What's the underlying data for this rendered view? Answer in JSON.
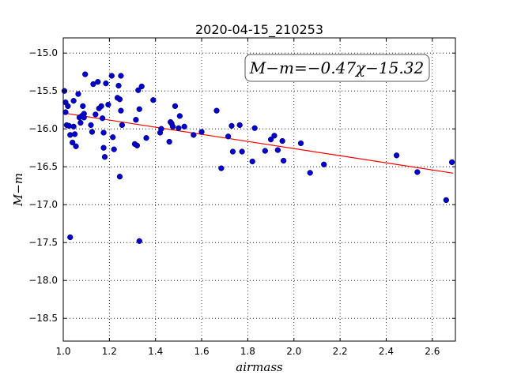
{
  "chart_data": {
    "type": "scatter",
    "title": "2020-04-15_210253",
    "xlabel": "airmass",
    "ylabel": "M−m",
    "xlim": [
      1.0,
      2.7
    ],
    "ylim": [
      -18.8,
      -14.8
    ],
    "x_ticks": [
      "1.0",
      "1.2",
      "1.4",
      "1.6",
      "1.8",
      "2.0",
      "2.2",
      "2.4",
      "2.6"
    ],
    "y_ticks": [
      "−15.0",
      "−15.5",
      "−16.0",
      "−16.5",
      "−17.0",
      "−17.5",
      "−18.0",
      "−18.5"
    ],
    "x_tick_values": [
      1.0,
      1.2,
      1.4,
      1.6,
      1.8,
      2.0,
      2.2,
      2.4,
      2.6
    ],
    "y_tick_values": [
      -15.0,
      -15.5,
      -16.0,
      -16.5,
      -17.0,
      -17.5,
      -18.0,
      -18.5
    ],
    "grid": true,
    "annotation": "M−m=−0.47χ−15.32",
    "fit": {
      "slope": -0.47,
      "intercept": -15.32,
      "x_range": [
        1.0,
        2.69
      ],
      "color": "#ff0000"
    },
    "marker_color": "#0000cc",
    "points": [
      [
        1.005,
        -15.5
      ],
      [
        1.01,
        -15.65
      ],
      [
        1.01,
        -15.78
      ],
      [
        1.015,
        -15.95
      ],
      [
        1.02,
        -15.7
      ],
      [
        1.025,
        -15.96
      ],
      [
        1.03,
        -16.08
      ],
      [
        1.03,
        -17.43
      ],
      [
        1.04,
        -16.18
      ],
      [
        1.045,
        -15.97
      ],
      [
        1.045,
        -15.63
      ],
      [
        1.05,
        -16.07
      ],
      [
        1.055,
        -16.23
      ],
      [
        1.065,
        -15.54
      ],
      [
        1.07,
        -15.85
      ],
      [
        1.075,
        -15.92
      ],
      [
        1.08,
        -15.83
      ],
      [
        1.085,
        -15.7
      ],
      [
        1.09,
        -15.8
      ],
      [
        1.09,
        -15.85
      ],
      [
        1.095,
        -15.28
      ],
      [
        1.12,
        -15.95
      ],
      [
        1.125,
        -16.04
      ],
      [
        1.13,
        -15.41
      ],
      [
        1.14,
        -15.81
      ],
      [
        1.15,
        -15.38
      ],
      [
        1.155,
        -15.73
      ],
      [
        1.165,
        -15.7
      ],
      [
        1.17,
        -15.86
      ],
      [
        1.175,
        -16.05
      ],
      [
        1.175,
        -16.25
      ],
      [
        1.18,
        -16.37
      ],
      [
        1.185,
        -15.4
      ],
      [
        1.195,
        -15.68
      ],
      [
        1.21,
        -15.3
      ],
      [
        1.215,
        -16.11
      ],
      [
        1.22,
        -16.27
      ],
      [
        1.235,
        -15.59
      ],
      [
        1.24,
        -15.43
      ],
      [
        1.245,
        -15.61
      ],
      [
        1.245,
        -16.63
      ],
      [
        1.25,
        -15.3
      ],
      [
        1.25,
        -15.76
      ],
      [
        1.255,
        -15.95
      ],
      [
        1.31,
        -16.2
      ],
      [
        1.315,
        -15.88
      ],
      [
        1.32,
        -16.22
      ],
      [
        1.325,
        -15.49
      ],
      [
        1.33,
        -15.74
      ],
      [
        1.33,
        -17.48
      ],
      [
        1.34,
        -15.44
      ],
      [
        1.36,
        -16.12
      ],
      [
        1.39,
        -15.62
      ],
      [
        1.42,
        -16.05
      ],
      [
        1.425,
        -16.0
      ],
      [
        1.46,
        -16.17
      ],
      [
        1.465,
        -15.91
      ],
      [
        1.47,
        -15.93
      ],
      [
        1.475,
        -15.97
      ],
      [
        1.485,
        -15.7
      ],
      [
        1.5,
        -15.99
      ],
      [
        1.505,
        -15.83
      ],
      [
        1.525,
        -15.97
      ],
      [
        1.565,
        -16.08
      ],
      [
        1.6,
        -16.04
      ],
      [
        1.665,
        -15.76
      ],
      [
        1.685,
        -16.52
      ],
      [
        1.715,
        -16.1
      ],
      [
        1.73,
        -15.96
      ],
      [
        1.735,
        -16.3
      ],
      [
        1.765,
        -15.95
      ],
      [
        1.775,
        -16.3
      ],
      [
        1.82,
        -16.43
      ],
      [
        1.83,
        -15.99
      ],
      [
        1.875,
        -16.29
      ],
      [
        1.9,
        -16.14
      ],
      [
        1.915,
        -16.09
      ],
      [
        1.93,
        -16.28
      ],
      [
        1.95,
        -16.16
      ],
      [
        1.955,
        -16.42
      ],
      [
        2.03,
        -16.19
      ],
      [
        2.07,
        -16.58
      ],
      [
        2.13,
        -16.47
      ],
      [
        2.445,
        -16.35
      ],
      [
        2.535,
        -16.57
      ],
      [
        2.66,
        -16.94
      ],
      [
        2.685,
        -16.44
      ]
    ]
  }
}
